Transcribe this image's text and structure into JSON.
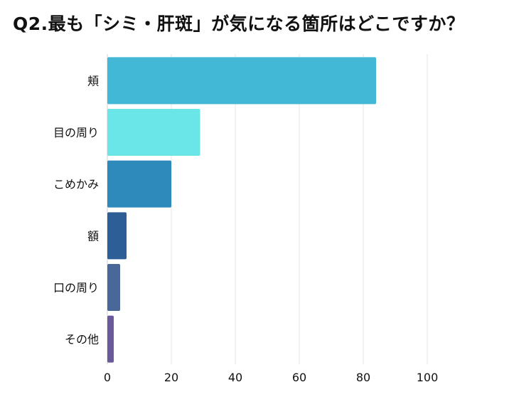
{
  "title": "Q2.最も「シミ・肝斑」が気になる箇所はどこですか？",
  "chart_data": {
    "type": "bar",
    "orientation": "horizontal",
    "title": "Q2.最も「シミ・肝斑」が気になる箇所はどこですか？",
    "xlabel": "",
    "ylabel": "",
    "xlim": [
      0,
      100
    ],
    "xticks": [
      0,
      20,
      40,
      60,
      80,
      100
    ],
    "grid": true,
    "categories": [
      "頬",
      "目の周り",
      "こめかみ",
      "額",
      "口の周り",
      "その他"
    ],
    "values": [
      84,
      29,
      20,
      6,
      4,
      2
    ],
    "colors": [
      "#42b7d6",
      "#6ae6e8",
      "#2e8abb",
      "#2d5f96",
      "#4a6799",
      "#6a5a9c"
    ]
  }
}
